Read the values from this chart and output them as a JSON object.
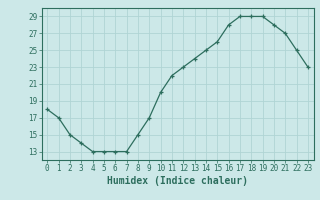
{
  "x": [
    0,
    1,
    2,
    3,
    4,
    5,
    6,
    7,
    8,
    9,
    10,
    11,
    12,
    13,
    14,
    15,
    16,
    17,
    18,
    19,
    20,
    21,
    22,
    23
  ],
  "y": [
    18,
    17,
    15,
    14,
    13,
    13,
    13,
    13,
    15,
    17,
    20,
    22,
    23,
    24,
    25,
    26,
    28,
    29,
    29,
    29,
    28,
    27,
    25,
    23
  ],
  "xlabel": "Humidex (Indice chaleur)",
  "ylim": [
    12,
    30
  ],
  "yticks": [
    13,
    15,
    17,
    19,
    21,
    23,
    25,
    27,
    29
  ],
  "xticks": [
    0,
    1,
    2,
    3,
    4,
    5,
    6,
    7,
    8,
    9,
    10,
    11,
    12,
    13,
    14,
    15,
    16,
    17,
    18,
    19,
    20,
    21,
    22,
    23
  ],
  "line_color": "#2d6e5e",
  "marker": "+",
  "bg_color": "#cce8e8",
  "grid_color": "#b0d4d4",
  "axis_color": "#2d6e5e",
  "label_color": "#2d6e5e",
  "tick_fontsize": 5.5,
  "xlabel_fontsize": 7.0
}
